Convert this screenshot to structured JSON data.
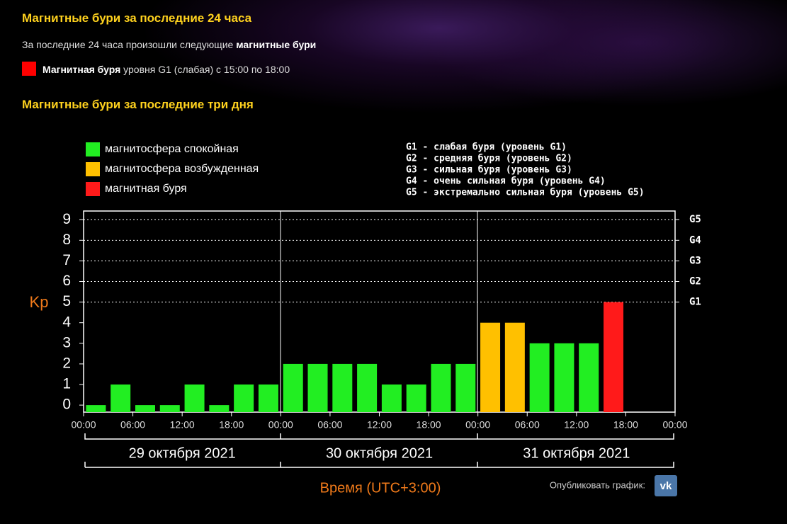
{
  "header": {
    "title": "Магнитные бури за последние 24 часа",
    "intro": [
      "За последние 24 часа произошли следующие ",
      "магнитные бури"
    ],
    "event": [
      "Магнитная буря",
      " уровня G1 (слабая) с 15:00 по 18:00"
    ],
    "subtitle": "Магнитные бури за последние три дня"
  },
  "chart_data": {
    "type": "bar",
    "y_label": "Kp",
    "x_label": "Время (UTC+3:00)",
    "legend": [
      {
        "name": "магнитосфера спокойная",
        "color": "#22ee22"
      },
      {
        "name": "магнитосфера возбужденная",
        "color": "#ffc000"
      },
      {
        "name": "магнитная буря",
        "color": "#ff1a1a"
      }
    ],
    "storm_levels": [
      "G1 - слабая буря (уровень G1)",
      "G2 - средняя буря (уровень G2)",
      "G3 - сильная буря (уровень G3)",
      "G4 - очень сильная буря (уровень G4)",
      "G5 - экстремально сильная буря (уровень G5)"
    ],
    "days": [
      "29 октября 2021",
      "30 октября 2021",
      "31 октября 2021"
    ],
    "categories": [
      null,
      null,
      null,
      null,
      null,
      null,
      null,
      null,
      null,
      null,
      null,
      null,
      null,
      null,
      null,
      null,
      null,
      null,
      null,
      null,
      null,
      null,
      null,
      null
    ],
    "values": [
      0,
      1,
      0,
      0,
      1,
      0,
      1,
      1,
      2,
      2,
      2,
      2,
      1,
      1,
      2,
      2,
      4,
      4,
      3,
      3,
      3,
      5,
      null,
      null
    ],
    "colors": [
      "#22ee22",
      "#22ee22",
      "#22ee22",
      "#22ee22",
      "#22ee22",
      "#22ee22",
      "#22ee22",
      "#22ee22",
      "#22ee22",
      "#22ee22",
      "#22ee22",
      "#22ee22",
      "#22ee22",
      "#22ee22",
      "#22ee22",
      "#22ee22",
      "#ffc000",
      "#ffc000",
      "#22ee22",
      "#22ee22",
      "#22ee22",
      "#ff1a1a",
      null,
      null
    ],
    "ylim": [
      -0.34,
      9.42
    ],
    "yticks": [
      0,
      1,
      2,
      3,
      4,
      5,
      6,
      7,
      8,
      9
    ],
    "y2ticks": [
      {
        "value": 5,
        "label": "G1"
      },
      {
        "value": 6,
        "label": "G2"
      },
      {
        "value": 7,
        "label": "G3"
      },
      {
        "value": 8,
        "label": "G4"
      },
      {
        "value": 9,
        "label": "G5"
      }
    ],
    "xlim": [
      0,
      24
    ],
    "xticks": [
      {
        "value": 0,
        "label": "00:00"
      },
      {
        "value": 2,
        "label": "06:00"
      },
      {
        "value": 4,
        "label": "12:00"
      },
      {
        "value": 6,
        "label": "18:00"
      },
      {
        "value": 8,
        "label": "00:00"
      },
      {
        "value": 10,
        "label": "06:00"
      },
      {
        "value": 12,
        "label": "12:00"
      },
      {
        "value": 14,
        "label": "18:00"
      },
      {
        "value": 16,
        "label": "00:00"
      },
      {
        "value": 18,
        "label": "06:00"
      },
      {
        "value": 20,
        "label": "12:00"
      },
      {
        "value": 22,
        "label": "18:00"
      },
      {
        "value": 24,
        "label": "00:00"
      }
    ],
    "grid": true
  },
  "share": {
    "label": "Опубликовать график:",
    "icon": "vk"
  }
}
